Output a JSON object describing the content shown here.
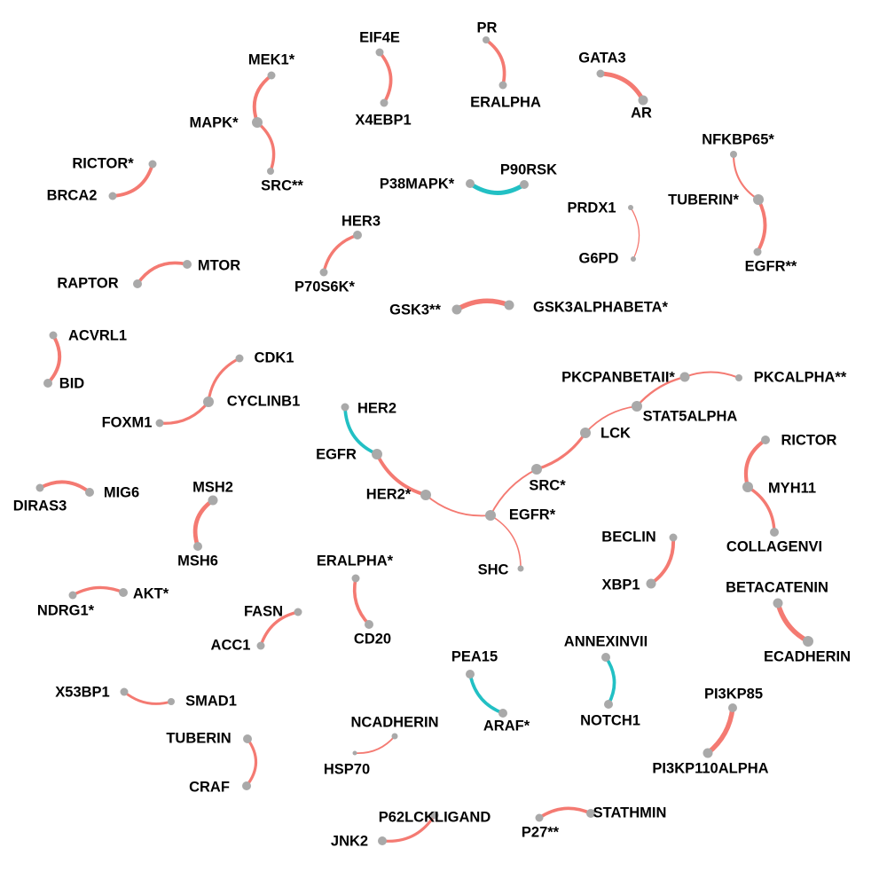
{
  "colors": {
    "positive": "#f47a72",
    "negative": "#22c0c4",
    "node": "#a9a9a9",
    "text": "#000000"
  },
  "nodes": [
    {
      "id": "MEK1*"
    },
    {
      "id": "MAPK*"
    },
    {
      "id": "SRC**"
    },
    {
      "id": "EIF4E"
    },
    {
      "id": "X4EBP1"
    },
    {
      "id": "PR"
    },
    {
      "id": "ERALPHA"
    },
    {
      "id": "GATA3"
    },
    {
      "id": "AR"
    },
    {
      "id": "NFKBP65*"
    },
    {
      "id": "TUBERIN*"
    },
    {
      "id": "EGFR**"
    },
    {
      "id": "RICTOR*"
    },
    {
      "id": "BRCA2"
    },
    {
      "id": "P38MAPK*"
    },
    {
      "id": "P90RSK"
    },
    {
      "id": "PRDX1"
    },
    {
      "id": "G6PD"
    },
    {
      "id": "HER3"
    },
    {
      "id": "P70S6K*"
    },
    {
      "id": "RAPTOR"
    },
    {
      "id": "MTOR"
    },
    {
      "id": "GSK3**"
    },
    {
      "id": "GSK3ALPHABETA*"
    },
    {
      "id": "ACVRL1"
    },
    {
      "id": "BID"
    },
    {
      "id": "CDK1"
    },
    {
      "id": "CYCLINB1"
    },
    {
      "id": "FOXM1"
    },
    {
      "id": "PKCPANBETAII*"
    },
    {
      "id": "PKCALPHA**"
    },
    {
      "id": "STAT5ALPHA"
    },
    {
      "id": "LCK"
    },
    {
      "id": "SRC*"
    },
    {
      "id": "EGFR*"
    },
    {
      "id": "SHC"
    },
    {
      "id": "HER2*"
    },
    {
      "id": "EGFR"
    },
    {
      "id": "HER2"
    },
    {
      "id": "RICTOR"
    },
    {
      "id": "MYH11"
    },
    {
      "id": "COLLAGENVI"
    },
    {
      "id": "DIRAS3"
    },
    {
      "id": "MIG6"
    },
    {
      "id": "MSH2"
    },
    {
      "id": "MSH6"
    },
    {
      "id": "BECLIN"
    },
    {
      "id": "XBP1"
    },
    {
      "id": "BETACATENIN"
    },
    {
      "id": "ECADHERIN"
    },
    {
      "id": "NDRG1*"
    },
    {
      "id": "AKT*"
    },
    {
      "id": "ERALPHA*"
    },
    {
      "id": "CD20"
    },
    {
      "id": "FASN"
    },
    {
      "id": "ACC1"
    },
    {
      "id": "ANNEXINVII"
    },
    {
      "id": "NOTCH1"
    },
    {
      "id": "PEA15"
    },
    {
      "id": "ARAF*"
    },
    {
      "id": "X53BP1"
    },
    {
      "id": "SMAD1"
    },
    {
      "id": "PI3KP85"
    },
    {
      "id": "PI3KP110ALPHA"
    },
    {
      "id": "NCADHERIN"
    },
    {
      "id": "HSP70"
    },
    {
      "id": "TUBERIN"
    },
    {
      "id": "CRAF"
    },
    {
      "id": "P62LCKLIGAND"
    },
    {
      "id": "JNK2"
    },
    {
      "id": "STATHMIN"
    },
    {
      "id": "P27**"
    }
  ],
  "edges": [
    {
      "source": "MEK1*",
      "target": "MAPK*",
      "sign": "positive",
      "strength": 0.6
    },
    {
      "source": "MAPK*",
      "target": "SRC**",
      "sign": "positive",
      "strength": 0.5
    },
    {
      "source": "EIF4E",
      "target": "X4EBP1",
      "sign": "positive",
      "strength": 0.55
    },
    {
      "source": "PR",
      "target": "ERALPHA",
      "sign": "positive",
      "strength": 0.55
    },
    {
      "source": "GATA3",
      "target": "AR",
      "sign": "positive",
      "strength": 0.8
    },
    {
      "source": "NFKBP65*",
      "target": "TUBERIN*",
      "sign": "positive",
      "strength": 0.25
    },
    {
      "source": "TUBERIN*",
      "target": "EGFR**",
      "sign": "positive",
      "strength": 0.6
    },
    {
      "source": "RICTOR*",
      "target": "BRCA2",
      "sign": "positive",
      "strength": 0.6
    },
    {
      "source": "P38MAPK*",
      "target": "P90RSK",
      "sign": "negative",
      "strength": 0.8
    },
    {
      "source": "PRDX1",
      "target": "G6PD",
      "sign": "positive",
      "strength": 0.1
    },
    {
      "source": "HER3",
      "target": "P70S6K*",
      "sign": "positive",
      "strength": 0.5
    },
    {
      "source": "RAPTOR",
      "target": "MTOR",
      "sign": "positive",
      "strength": 0.55
    },
    {
      "source": "GSK3**",
      "target": "GSK3ALPHABETA*",
      "sign": "positive",
      "strength": 0.9
    },
    {
      "source": "ACVRL1",
      "target": "BID",
      "sign": "positive",
      "strength": 0.6
    },
    {
      "source": "CDK1",
      "target": "CYCLINB1",
      "sign": "positive",
      "strength": 0.45
    },
    {
      "source": "CYCLINB1",
      "target": "FOXM1",
      "sign": "positive",
      "strength": 0.45
    },
    {
      "source": "PKCPANBETAII*",
      "target": "PKCALPHA**",
      "sign": "positive",
      "strength": 0.25
    },
    {
      "source": "PKCPANBETAII*",
      "target": "STAT5ALPHA",
      "sign": "positive",
      "strength": 0.3
    },
    {
      "source": "STAT5ALPHA",
      "target": "LCK",
      "sign": "positive",
      "strength": 0.2
    },
    {
      "source": "LCK",
      "target": "SRC*",
      "sign": "positive",
      "strength": 0.45
    },
    {
      "source": "SRC*",
      "target": "EGFR*",
      "sign": "positive",
      "strength": 0.2
    },
    {
      "source": "EGFR*",
      "target": "SHC",
      "sign": "positive",
      "strength": 0.15
    },
    {
      "source": "EGFR*",
      "target": "HER2*",
      "sign": "positive",
      "strength": 0.2
    },
    {
      "source": "HER2*",
      "target": "EGFR",
      "sign": "positive",
      "strength": 0.6
    },
    {
      "source": "EGFR",
      "target": "HER2",
      "sign": "negative",
      "strength": 0.55
    },
    {
      "source": "RICTOR",
      "target": "MYH11",
      "sign": "positive",
      "strength": 0.65
    },
    {
      "source": "MYH11",
      "target": "COLLAGENVI",
      "sign": "positive",
      "strength": 0.5
    },
    {
      "source": "DIRAS3",
      "target": "MIG6",
      "sign": "positive",
      "strength": 0.6
    },
    {
      "source": "MSH2",
      "target": "MSH6",
      "sign": "positive",
      "strength": 0.75
    },
    {
      "source": "BECLIN",
      "target": "XBP1",
      "sign": "positive",
      "strength": 0.6
    },
    {
      "source": "BETACATENIN",
      "target": "ECADHERIN",
      "sign": "positive",
      "strength": 0.9
    },
    {
      "source": "NDRG1*",
      "target": "AKT*",
      "sign": "positive",
      "strength": 0.5
    },
    {
      "source": "ERALPHA*",
      "target": "CD20",
      "sign": "positive",
      "strength": 0.55
    },
    {
      "source": "FASN",
      "target": "ACC1",
      "sign": "positive",
      "strength": 0.5
    },
    {
      "source": "ANNEXINVII",
      "target": "NOTCH1",
      "sign": "negative",
      "strength": 0.55
    },
    {
      "source": "PEA15",
      "target": "ARAF*",
      "sign": "negative",
      "strength": 0.55
    },
    {
      "source": "X53BP1",
      "target": "SMAD1",
      "sign": "positive",
      "strength": 0.4
    },
    {
      "source": "PI3KP85",
      "target": "PI3KP110ALPHA",
      "sign": "positive",
      "strength": 0.9
    },
    {
      "source": "NCADHERIN",
      "target": "HSP70",
      "sign": "positive",
      "strength": 0.2
    },
    {
      "source": "TUBERIN",
      "target": "CRAF",
      "sign": "positive",
      "strength": 0.45
    },
    {
      "source": "P62LCKLIGAND",
      "target": "JNK2",
      "sign": "positive",
      "strength": 0.45
    },
    {
      "source": "STATHMIN",
      "target": "P27**",
      "sign": "positive",
      "strength": 0.55
    }
  ]
}
